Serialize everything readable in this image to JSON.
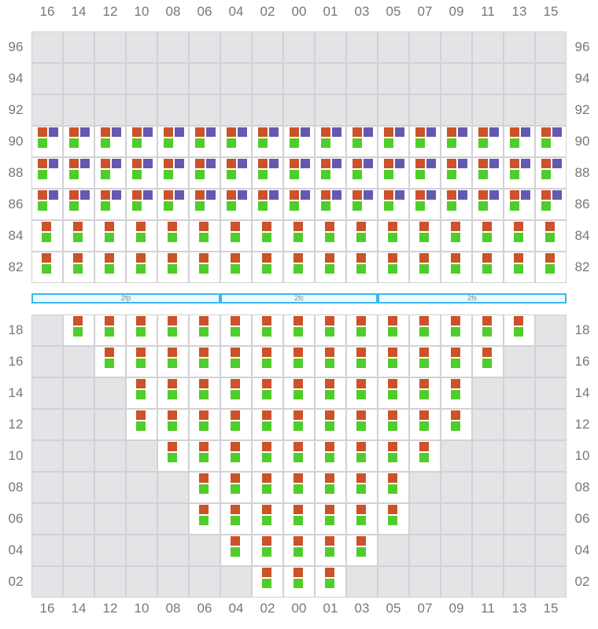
{
  "columns": [
    "16",
    "14",
    "12",
    "10",
    "08",
    "06",
    "04",
    "02",
    "00",
    "01",
    "03",
    "05",
    "07",
    "09",
    "11",
    "13",
    "15"
  ],
  "colors": {
    "orange": "#cc5229",
    "purple": "#6459b0",
    "green": "#4fcd2a",
    "empty": "#e4e4e7",
    "band_border": "#3bb8f0"
  },
  "top_rows": [
    {
      "label": "96",
      "type": "empty"
    },
    {
      "label": "94",
      "type": "empty"
    },
    {
      "label": "92",
      "type": "empty"
    },
    {
      "label": "90",
      "type": "three"
    },
    {
      "label": "88",
      "type": "three"
    },
    {
      "label": "86",
      "type": "three"
    },
    {
      "label": "84",
      "type": "two"
    },
    {
      "label": "82",
      "type": "two"
    }
  ],
  "bands": [
    {
      "label": "2fp",
      "from": 0,
      "to": 6
    },
    {
      "label": "2fc",
      "from": 6,
      "to": 11
    },
    {
      "label": "2fs",
      "from": 11,
      "to": 17
    }
  ],
  "bottom_rows": [
    {
      "label": "18",
      "first": "14",
      "last": "13"
    },
    {
      "label": "16",
      "first": "12",
      "last": "11"
    },
    {
      "label": "14",
      "first": "10",
      "last": "09"
    },
    {
      "label": "12",
      "first": "10",
      "last": "09"
    },
    {
      "label": "10",
      "first": "08",
      "last": "07"
    },
    {
      "label": "08",
      "first": "06",
      "last": "05"
    },
    {
      "label": "06",
      "first": "06",
      "last": "05"
    },
    {
      "label": "04",
      "first": "04",
      "last": "03"
    },
    {
      "label": "02",
      "first": "02",
      "last": "01"
    }
  ]
}
